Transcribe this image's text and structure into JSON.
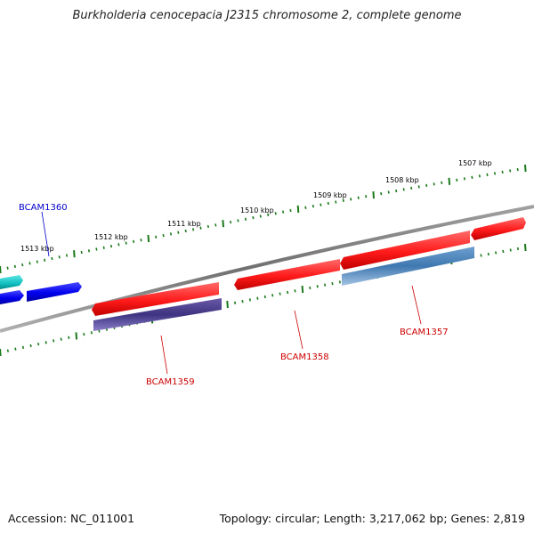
{
  "title": "Burkholderia cenocepacia J2315 chromosome 2, complete genome",
  "footer": {
    "accession": "Accession: NC_011001",
    "topology": "Topology: circular; Length: 3,217,062 bp; Genes: 2,819"
  },
  "colors": {
    "backbone": "#808080",
    "tick": "#1a7a1a",
    "forward_gene": "#ff2020",
    "label_blue": "#0000cc",
    "label_red": "#cc0000"
  },
  "scale": {
    "unit": "kbp",
    "ticks": [
      "1513 kbp",
      "1512 kbp",
      "1511 kbp",
      "1510 kbp",
      "1509 kbp",
      "1508 kbp",
      "1507 kbp"
    ]
  },
  "gene_labels": [
    {
      "name": "BCAM1360",
      "color": "#0000cc"
    },
    {
      "name": "BCAM1359",
      "color": "#cc0000"
    },
    {
      "name": "BCAM1358",
      "color": "#cc0000"
    },
    {
      "name": "BCAM1357",
      "color": "#cc0000"
    }
  ]
}
